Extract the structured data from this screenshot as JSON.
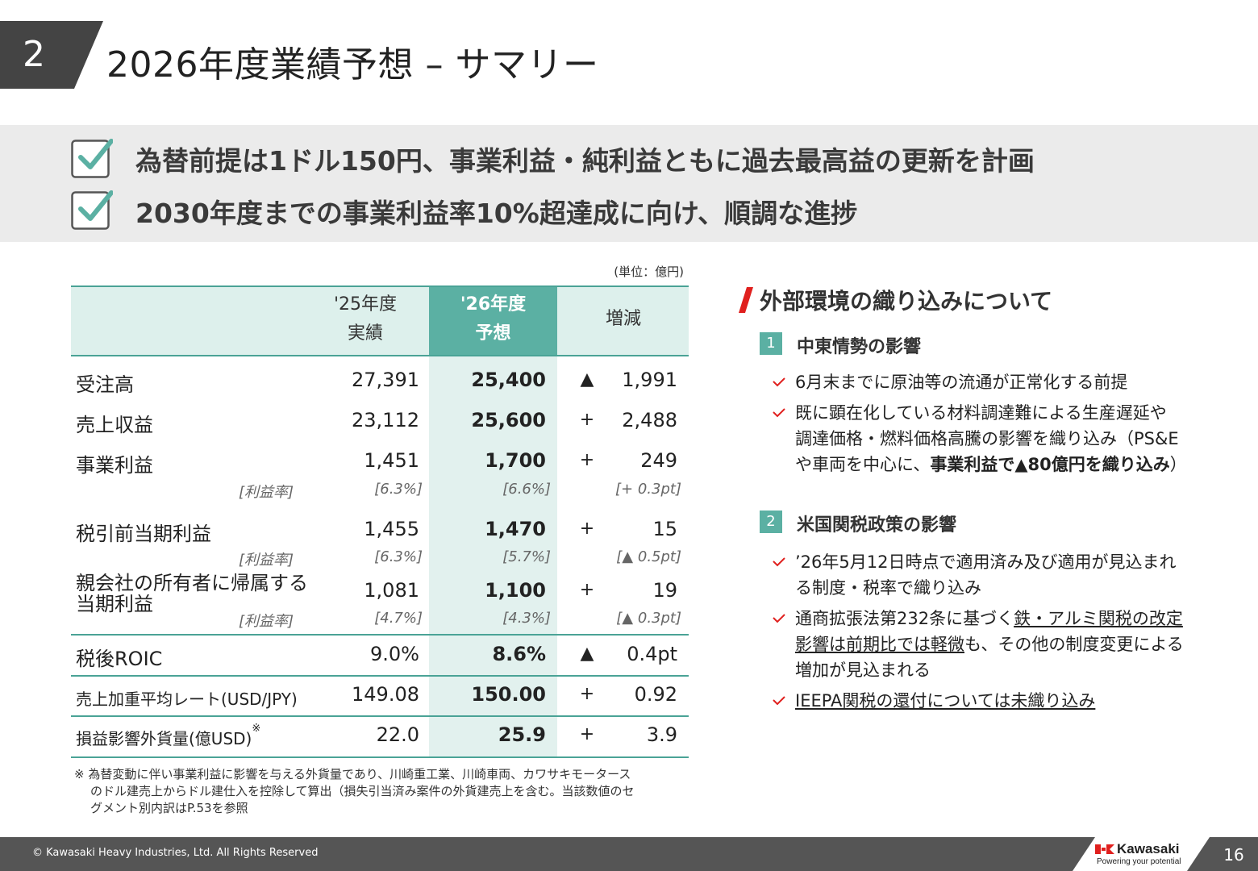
{
  "header": {
    "section_number": "2",
    "title": "2026年度業績予想 – サマリー"
  },
  "highlights": [
    "為替前提は1ドル150円、事業利益・純利益ともに過去最高益の更新を計画",
    "2030年度までの事業利益率10%超達成に向け、順調な進捗"
  ],
  "table": {
    "unit": "(単位：億円)",
    "headers": {
      "col1_line1": "'25年度",
      "col1_line2": "実績",
      "col2_line1": "'26年度",
      "col2_line2": "予想",
      "col3": "増減"
    },
    "rows": [
      {
        "label": "受注高",
        "actual": "27,391",
        "forecast": "25,400",
        "sign": "▲",
        "diff": "1,991"
      },
      {
        "label": "売上収益",
        "actual": "23,112",
        "forecast": "25,600",
        "sign": "+",
        "diff": "2,488"
      },
      {
        "label": "事業利益",
        "actual": "1,451",
        "forecast": "1,700",
        "sign": "+",
        "diff": "249",
        "sub_label": "[利益率]",
        "sub_actual": "[6.3%]",
        "sub_forecast": "[6.6%]",
        "sub_diff": "[+ 0.3pt]"
      },
      {
        "label": "税引前当期利益",
        "actual": "1,455",
        "forecast": "1,470",
        "sign": "+",
        "diff": "15",
        "sub_label": "[利益率]",
        "sub_actual": "[6.3%]",
        "sub_forecast": "[5.7%]",
        "sub_diff": "[▲ 0.5pt]"
      },
      {
        "label_line1": "親会社の所有者に帰属する",
        "label_line2": "当期利益",
        "actual": "1,081",
        "forecast": "1,100",
        "sign": "+",
        "diff": "19",
        "sub_label": "[利益率]",
        "sub_actual": "[4.7%]",
        "sub_forecast": "[4.3%]",
        "sub_diff": "[▲ 0.3pt]"
      },
      {
        "label": "税後ROIC",
        "actual": "9.0%",
        "forecast": "8.6%",
        "sign": "▲",
        "diff": "0.4pt"
      },
      {
        "label": "売上加重平均レート(USD/JPY)",
        "actual": "149.08",
        "forecast": "150.00",
        "sign": "+",
        "diff": "0.92"
      },
      {
        "label": "損益影響外貨量(億USD)",
        "note_mark": "※",
        "actual": "22.0",
        "forecast": "25.9",
        "sign": "+",
        "diff": "3.9"
      }
    ],
    "footnote_line1": "※ 為替変動に伴い事業利益に影響を与える外貨量であり、川崎重工業、川崎車両、カワサキモータース",
    "footnote_line2": "のドル建売上からドル建仕入を控除して算出（損失引当済み案件の外貨建売上を含む。当該数値のセ",
    "footnote_line3": "グメント別内訳はP.53を参照"
  },
  "right_panel": {
    "title": "外部環境の織り込みについて",
    "sections": [
      {
        "num": "1",
        "heading": "中東情勢の影響",
        "bullets": [
          {
            "text": "6月末までに原油等の流通が正常化する前提"
          },
          {
            "line1": "既に顕在化している材料調達難による生産遅延や",
            "line2": "調達価格・燃料価格高騰の影響を織り込み（PS&E",
            "line3_pre": "や車両を中心に、",
            "line3_bold": "事業利益で▲80億円を織り込み",
            "line3_post": "）"
          }
        ]
      },
      {
        "num": "2",
        "heading": "米国関税政策の影響",
        "bullets": [
          {
            "line1": "’26年5月12日時点で適用済み及び適用が見込まれ",
            "line2": "る制度・税率で織り込み"
          },
          {
            "line1_pre": "通商拡張法第232条に基づく",
            "line1_u": "鉄・アルミ関税の改定",
            "line2_u": "影響は前期比では軽微",
            "line2_post": "も、その他の制度変更による",
            "line3": "増加が見込まれる"
          },
          {
            "text_u": "IEEPA関税の還付については未織り込み"
          }
        ]
      }
    ]
  },
  "footer": {
    "copyright": "© Kawasaki Heavy Industries, Ltd. All Rights Reserved",
    "logo_word": "Kawasaki",
    "logo_tagline": "Powering your potential",
    "page_number": "16"
  },
  "colors": {
    "teal": "#5bb0a3",
    "teal_light": "#e2f1ee",
    "dark_gray": "#444444",
    "band_gray": "#ebebeb",
    "red_accent": "#e0201e"
  }
}
